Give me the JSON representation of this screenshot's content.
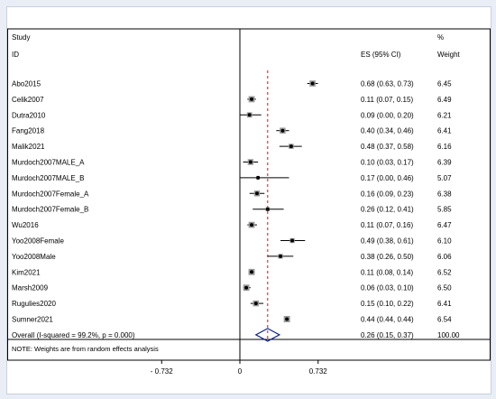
{
  "header": {
    "col_study": "Study",
    "col_id": "ID",
    "col_es": "ES (95% CI)",
    "col_pct": "%",
    "col_weight": "Weight"
  },
  "footer_note": "NOTE: Weights are from random effects analysis",
  "colors": {
    "background": "#e9eef6",
    "panel": "#ffffff",
    "border": "#c7d0dc",
    "line": "#000000",
    "reference_line": "#b22222",
    "diamond": "#0b1f8a",
    "box": "#9a9a9a"
  },
  "chart_data": {
    "type": "forest",
    "xlim": [
      -1.1,
      1.1
    ],
    "x_ticks": [
      {
        "value": -0.732,
        "label": "- 0.732"
      },
      {
        "value": 0,
        "label": "0"
      },
      {
        "value": 0.732,
        "label": "0.732"
      }
    ],
    "null_line": 0,
    "overall_line": 0.26,
    "studies": [
      {
        "id": "Abo2015",
        "es": 0.68,
        "lo": 0.63,
        "hi": 0.73,
        "es_text": "0.68 (0.63, 0.73)",
        "weight": "6.45"
      },
      {
        "id": "Celik2007",
        "es": 0.11,
        "lo": 0.07,
        "hi": 0.15,
        "es_text": "0.11 (0.07, 0.15)",
        "weight": "6.49"
      },
      {
        "id": "Dutra2010",
        "es": 0.09,
        "lo": 0.0,
        "hi": 0.2,
        "es_text": "0.09 (0.00, 0.20)",
        "weight": "6.21"
      },
      {
        "id": "Fang2018",
        "es": 0.4,
        "lo": 0.34,
        "hi": 0.46,
        "es_text": "0.40 (0.34, 0.46)",
        "weight": "6.41"
      },
      {
        "id": "Malik2021",
        "es": 0.48,
        "lo": 0.37,
        "hi": 0.58,
        "es_text": "0.48 (0.37, 0.58)",
        "weight": "6.16"
      },
      {
        "id": "Murdoch2007MALE_A",
        "es": 0.1,
        "lo": 0.03,
        "hi": 0.17,
        "es_text": "0.10 (0.03, 0.17)",
        "weight": "6.39"
      },
      {
        "id": "Murdoch2007MALE_B",
        "es": 0.17,
        "lo": 0.0,
        "hi": 0.46,
        "es_text": "0.17 (0.00, 0.46)",
        "weight": "5.07"
      },
      {
        "id": "Murdoch2007Female_A",
        "es": 0.16,
        "lo": 0.09,
        "hi": 0.23,
        "es_text": "0.16 (0.09, 0.23)",
        "weight": "6.38"
      },
      {
        "id": "Murdoch2007Female_B",
        "es": 0.26,
        "lo": 0.12,
        "hi": 0.41,
        "es_text": "0.26 (0.12, 0.41)",
        "weight": "5.85"
      },
      {
        "id": "Wu2016",
        "es": 0.11,
        "lo": 0.07,
        "hi": 0.16,
        "es_text": "0.11 (0.07, 0.16)",
        "weight": "6.47"
      },
      {
        "id": "Yoo2008Female",
        "es": 0.49,
        "lo": 0.38,
        "hi": 0.61,
        "es_text": "0.49 (0.38, 0.61)",
        "weight": "6.10"
      },
      {
        "id": "Yoo2008Male",
        "es": 0.38,
        "lo": 0.26,
        "hi": 0.5,
        "es_text": "0.38 (0.26, 0.50)",
        "weight": "6.06"
      },
      {
        "id": "Kim2021",
        "es": 0.11,
        "lo": 0.08,
        "hi": 0.14,
        "es_text": "0.11 (0.08, 0.14)",
        "weight": "6.52"
      },
      {
        "id": "Marsh2009",
        "es": 0.06,
        "lo": 0.03,
        "hi": 0.1,
        "es_text": "0.06 (0.03, 0.10)",
        "weight": "6.50"
      },
      {
        "id": "Rugulies2020",
        "es": 0.15,
        "lo": 0.1,
        "hi": 0.22,
        "es_text": "0.15 (0.10, 0.22)",
        "weight": "6.41"
      },
      {
        "id": "Sumner2021",
        "es": 0.44,
        "lo": 0.44,
        "hi": 0.44,
        "es_text": "0.44 (0.44, 0.44)",
        "weight": "6.54"
      }
    ],
    "overall": {
      "label": "Overall  (I-squared = 99.2%, p = 0.000)",
      "es": 0.26,
      "lo": 0.15,
      "hi": 0.37,
      "es_text": "0.26 (0.15, 0.37)",
      "weight": "100.00"
    }
  }
}
